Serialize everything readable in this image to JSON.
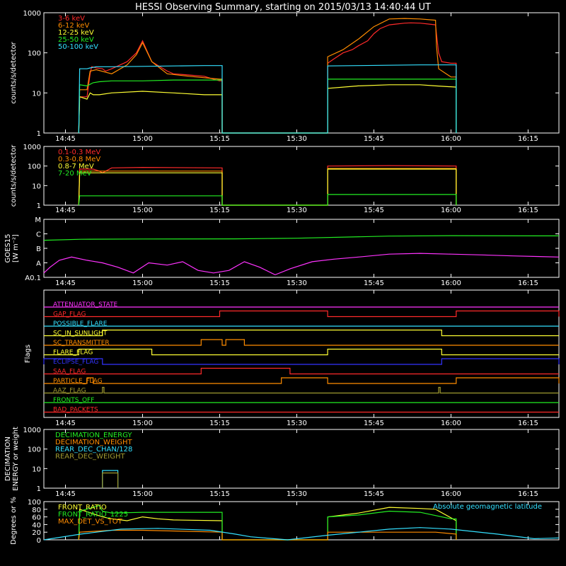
{
  "title": "HESSI Observing Summary, starting on 2015/03/13 14:40:44 UT",
  "colors": {
    "axis": "#ffffff",
    "red": "#ff2a2a",
    "orange": "#ff8c00",
    "yellow": "#ffff33",
    "green": "#22ee22",
    "cyan": "#33e0ff",
    "magenta": "#ff33ff",
    "blue": "#3333ff",
    "olive": "#a09a30"
  },
  "chart_data": [
    {
      "type": "line",
      "id": "panel-counts-low",
      "ylabel": "counts/s/detector",
      "yscale": "log",
      "ylim": [
        1,
        1000
      ],
      "yticks": [
        "1",
        "10",
        "100",
        "1000"
      ],
      "xticks": [
        "14:45",
        "15:00",
        "15:15",
        "15:30",
        "15:45",
        "16:00",
        "16:15"
      ],
      "series": [
        {
          "name": "3-6 keV",
          "color": "red",
          "x": [
            14.793,
            14.796,
            14.82,
            14.82,
            14.83,
            14.835,
            14.85,
            14.87,
            14.88,
            14.9,
            14.95,
            14.98,
            15.0,
            15.03,
            15.08,
            15.1,
            15.15,
            15.2,
            15.23,
            15.25,
            15.258,
            15.258,
            15.6,
            15.6,
            15.62,
            15.65,
            15.68,
            15.7,
            15.73,
            15.75,
            15.77,
            15.8,
            15.82,
            15.85,
            15.87,
            15.9,
            15.93,
            15.95,
            15.953,
            15.96,
            15.97,
            16.0,
            16.01,
            16.017,
            16.017
          ],
          "y": [
            1,
            8,
            8,
            8,
            30,
            45,
            42,
            40,
            35,
            40,
            60,
            100,
            200,
            60,
            35,
            30,
            28,
            26,
            22,
            20,
            20,
            1,
            1,
            55,
            70,
            100,
            120,
            150,
            200,
            300,
            400,
            500,
            520,
            550,
            560,
            550,
            520,
            500,
            300,
            100,
            60,
            55,
            55,
            55,
            1
          ]
        },
        {
          "name": "6-12 keV",
          "color": "orange",
          "x": [
            14.793,
            14.796,
            14.82,
            14.83,
            14.85,
            14.9,
            14.95,
            14.98,
            15.0,
            15.03,
            15.08,
            15.15,
            15.2,
            15.25,
            15.258,
            15.258,
            15.6,
            15.6,
            15.65,
            15.7,
            15.75,
            15.8,
            15.85,
            15.9,
            15.95,
            15.953,
            15.96,
            16.0,
            16.017,
            16.017
          ],
          "y": [
            1,
            12,
            12,
            35,
            38,
            30,
            50,
            90,
            180,
            60,
            30,
            26,
            24,
            22,
            22,
            1,
            1,
            80,
            120,
            220,
            450,
            700,
            720,
            700,
            650,
            150,
            40,
            25,
            25,
            1
          ]
        },
        {
          "name": "12-25 keV",
          "color": "yellow",
          "x": [
            14.793,
            14.796,
            14.82,
            14.83,
            14.84,
            14.86,
            14.9,
            15.0,
            15.1,
            15.2,
            15.258,
            15.258,
            15.6,
            15.6,
            15.7,
            15.8,
            15.9,
            15.95,
            16.017,
            16.017
          ],
          "y": [
            1,
            8,
            7,
            10,
            9,
            9,
            10,
            11,
            10,
            9,
            9,
            1,
            1,
            13,
            15,
            16,
            16,
            15,
            14,
            1
          ]
        },
        {
          "name": "25-50 keV",
          "color": "green",
          "x": [
            14.793,
            14.796,
            14.82,
            14.84,
            14.86,
            14.9,
            15.0,
            15.1,
            15.2,
            15.258,
            15.258,
            15.6,
            15.6,
            15.7,
            15.8,
            15.9,
            16.017,
            16.017
          ],
          "y": [
            1,
            16,
            15,
            18,
            19,
            20,
            20,
            21,
            21,
            21,
            1,
            1,
            22,
            22,
            22,
            22,
            22,
            1
          ]
        },
        {
          "name": "50-100 keV",
          "color": "cyan",
          "x": [
            14.793,
            14.796,
            14.82,
            14.83,
            14.85,
            14.9,
            15.0,
            15.1,
            15.2,
            15.258,
            15.258,
            15.6,
            15.6,
            15.7,
            15.8,
            15.9,
            16.017,
            16.017
          ],
          "y": [
            1,
            40,
            40,
            42,
            45,
            45,
            46,
            47,
            48,
            48,
            1,
            1,
            47,
            48,
            49,
            50,
            50,
            1
          ]
        }
      ]
    },
    {
      "type": "line",
      "id": "panel-counts-high",
      "ylabel": "counts/s/detector",
      "yscale": "log",
      "ylim": [
        1,
        1000
      ],
      "yticks": [
        "1",
        "10",
        "100",
        "1000"
      ],
      "xticks": [
        "14:45",
        "15:00",
        "15:15",
        "15:30",
        "15:45",
        "16:00",
        "16:15"
      ],
      "series": [
        {
          "name": "0.1-0.3 MeV",
          "color": "red",
          "x": [
            14.793,
            14.796,
            14.84,
            14.86,
            14.87,
            14.9,
            15.0,
            15.258,
            15.258,
            15.6,
            15.6,
            15.8,
            16.017,
            16.017
          ],
          "y": [
            1,
            70,
            70,
            55,
            45,
            80,
            85,
            80,
            1,
            1,
            100,
            105,
            100,
            1
          ]
        },
        {
          "name": "0.3-0.8 MeV",
          "color": "orange",
          "x": [
            14.793,
            14.796,
            14.9,
            15.258,
            15.258,
            15.6,
            15.6,
            16.017,
            16.017
          ],
          "y": [
            1,
            55,
            55,
            55,
            1,
            1,
            75,
            75,
            1
          ]
        },
        {
          "name": "0.8-7 MeV",
          "color": "yellow",
          "x": [
            14.793,
            14.796,
            15.258,
            15.258,
            15.6,
            15.6,
            16.017,
            16.017
          ],
          "y": [
            1,
            45,
            45,
            1,
            1,
            70,
            70,
            1
          ]
        },
        {
          "name": "7-20 MeV",
          "color": "green",
          "x": [
            14.793,
            14.796,
            15.258,
            15.258,
            15.6,
            15.6,
            16.017,
            16.017
          ],
          "y": [
            1,
            3,
            3,
            1,
            1,
            3.5,
            3.5,
            1
          ]
        }
      ]
    },
    {
      "type": "line",
      "id": "panel-goes",
      "ylabel": "GOES15",
      "ylabel2": "[W m⁻²]",
      "yscale": "log",
      "ylim": [
        1e-08,
        0.0001
      ],
      "yticks": [
        "A0.1",
        "A",
        "B",
        "C",
        "M"
      ],
      "xticks": [
        "14:45",
        "15:00",
        "15:15",
        "15:30",
        "15:45",
        "16:00",
        "16:15"
      ],
      "series": [
        {
          "color": "green",
          "x": [
            14.68,
            14.8,
            15.0,
            15.3,
            15.5,
            15.8,
            16.0,
            16.35
          ],
          "y": [
            3.6e-06,
            4.2e-06,
            4.4e-06,
            4.5e-06,
            5e-06,
            7e-06,
            7.5e-06,
            7.2e-06
          ]
        },
        {
          "color": "magenta",
          "x": [
            14.68,
            14.7,
            14.73,
            14.77,
            14.82,
            14.87,
            14.92,
            14.97,
            15.02,
            15.08,
            15.13,
            15.18,
            15.23,
            15.28,
            15.33,
            15.38,
            15.43,
            15.48,
            15.55,
            15.62,
            15.7,
            15.8,
            15.9,
            16.0,
            16.1,
            16.2,
            16.35
          ],
          "y": [
            2e-08,
            5e-08,
            1.5e-07,
            2.5e-07,
            1.5e-07,
            1e-07,
            5e-08,
            2e-08,
            1e-07,
            7e-08,
            1.2e-07,
            3e-08,
            2e-08,
            3e-08,
            1.2e-07,
            5e-08,
            1.5e-08,
            4e-08,
            1.2e-07,
            1.8e-07,
            2.5e-07,
            4e-07,
            4.5e-07,
            4e-07,
            3.5e-07,
            3e-07,
            2.5e-07
          ]
        }
      ]
    },
    {
      "type": "line",
      "id": "panel-flags",
      "ylabel": "Flags",
      "xticks": [
        "14:45",
        "15:00",
        "15:15",
        "15:30",
        "15:45",
        "16:00",
        "16:15"
      ],
      "flags": [
        {
          "name": "ATTENUATOR_STATE",
          "color": "magenta",
          "on": []
        },
        {
          "name": "SAA_FLAG",
          "color": "red",
          "on": [
            [
              15.19,
              15.478
            ]
          ]
        },
        {
          "name": "SC_TRANSMITTER",
          "color": "orange",
          "on": [
            [
              15.19,
              15.258
            ],
            [
              15.27,
              15.33
            ]
          ]
        },
        {
          "name": "ECLIPSE_FLAG",
          "color": "blue",
          "on": [
            [
              14.68,
              14.87
            ],
            [
              15.97,
              16.35
            ]
          ]
        },
        {
          "name": "FRONTS_OFF",
          "color": "green",
          "on": []
        },
        {
          "name": "GAP_FLAG",
          "color": "red",
          "on": [
            [
              15.25,
              15.6
            ],
            [
              16.017,
              16.35
            ]
          ]
        },
        {
          "name": "SC_IN_SUNLIGHT",
          "color": "yellow",
          "on": [
            [
              14.87,
              15.97
            ]
          ]
        },
        {
          "name": "PARTICLE_FLAG",
          "color": "orange",
          "on": [
            [
              14.82,
              14.84
            ],
            [
              15.45,
              15.6
            ],
            [
              16.017,
              16.35
            ]
          ]
        },
        {
          "name": "FLARE_FLAG",
          "color": "yellow",
          "on": [
            [
              14.793,
              15.03
            ],
            [
              15.6,
              15.97
            ]
          ]
        },
        {
          "name": "BAD_PACKETS",
          "color": "red",
          "on": []
        },
        {
          "name": "POSSIBLE_FLARE",
          "color": "cyan",
          "on": []
        },
        {
          "name": "AAZ_FLAG",
          "color": "olive",
          "on": [
            [
              14.87,
              14.875
            ],
            [
              15.96,
              15.965
            ]
          ]
        }
      ]
    },
    {
      "type": "line",
      "id": "panel-decimation",
      "ylabel": "DECIMATION",
      "ylabel2": "ENERGY or weight",
      "yscale": "log",
      "ylim": [
        1,
        1000
      ],
      "yticks": [
        "1",
        "10",
        "100",
        "1000"
      ],
      "xticks": [
        "14:45",
        "15:00",
        "15:15",
        "15:30",
        "15:45",
        "16:00",
        "16:15"
      ],
      "series": [
        {
          "name": "DECIMATION_ENERGY",
          "color": "green",
          "x": [],
          "y": []
        },
        {
          "name": "DECIMATION_WEIGHT",
          "color": "orange",
          "x": [],
          "y": []
        },
        {
          "name": "REAR_DEC_CHAN/128",
          "color": "cyan",
          "x": [
            14.87,
            14.87,
            14.92,
            14.92
          ],
          "y": [
            1,
            8,
            8,
            1
          ]
        },
        {
          "name": "REAR_DEC_WEIGHT",
          "color": "olive",
          "x": [
            14.87,
            14.87,
            14.92,
            14.92
          ],
          "y": [
            1,
            6,
            6,
            1
          ]
        }
      ]
    },
    {
      "type": "line",
      "id": "panel-ratios",
      "ylabel": "Degrees or %",
      "ylim": [
        0,
        100
      ],
      "yticks": [
        "0",
        "20",
        "40",
        "60",
        "80",
        "100"
      ],
      "xticks": [
        "14:45",
        "15:00",
        "15:15",
        "15:30",
        "15:45",
        "16:00",
        "16:15"
      ],
      "annotation": "Absolute geomagnetic latitude",
      "series": [
        {
          "name": "FRONT_RATIO",
          "color": "yellow",
          "x": [
            14.793,
            14.796,
            14.87,
            14.9,
            14.95,
            15.0,
            15.05,
            15.1,
            15.258,
            15.258,
            15.6,
            15.6,
            15.7,
            15.8,
            15.9,
            15.95,
            16.017,
            16.017
          ],
          "y": [
            0,
            80,
            60,
            55,
            50,
            60,
            55,
            52,
            50,
            0,
            0,
            60,
            70,
            85,
            82,
            80,
            50,
            0
          ]
        },
        {
          "name": "FRONT_RATIO_1225",
          "color": "green",
          "x": [
            14.793,
            14.796,
            14.86,
            14.87,
            14.9,
            15.0,
            15.258,
            15.258,
            15.6,
            15.6,
            15.7,
            15.8,
            15.9,
            16.0,
            16.017,
            16.017
          ],
          "y": [
            0,
            75,
            90,
            75,
            70,
            72,
            72,
            0,
            0,
            60,
            65,
            75,
            72,
            55,
            55,
            0
          ]
        },
        {
          "name": "MAX_DET_VS_TOT",
          "color": "orange",
          "x": [
            14.793,
            14.796,
            14.9,
            15.0,
            15.258,
            15.258,
            15.6,
            15.6,
            15.8,
            15.95,
            16.017,
            16.017
          ],
          "y": [
            0,
            20,
            25,
            25,
            20,
            0,
            0,
            20,
            20,
            20,
            15,
            0
          ]
        },
        {
          "color": "cyan",
          "x": [
            14.68,
            14.8,
            14.93,
            15.05,
            15.22,
            15.3,
            15.35,
            15.47,
            15.6,
            15.8,
            15.9,
            16.0,
            16.15,
            16.27,
            16.35
          ],
          "y": [
            0,
            15,
            28,
            30,
            25,
            15,
            8,
            0,
            12,
            28,
            32,
            28,
            15,
            3,
            5
          ]
        }
      ]
    }
  ]
}
